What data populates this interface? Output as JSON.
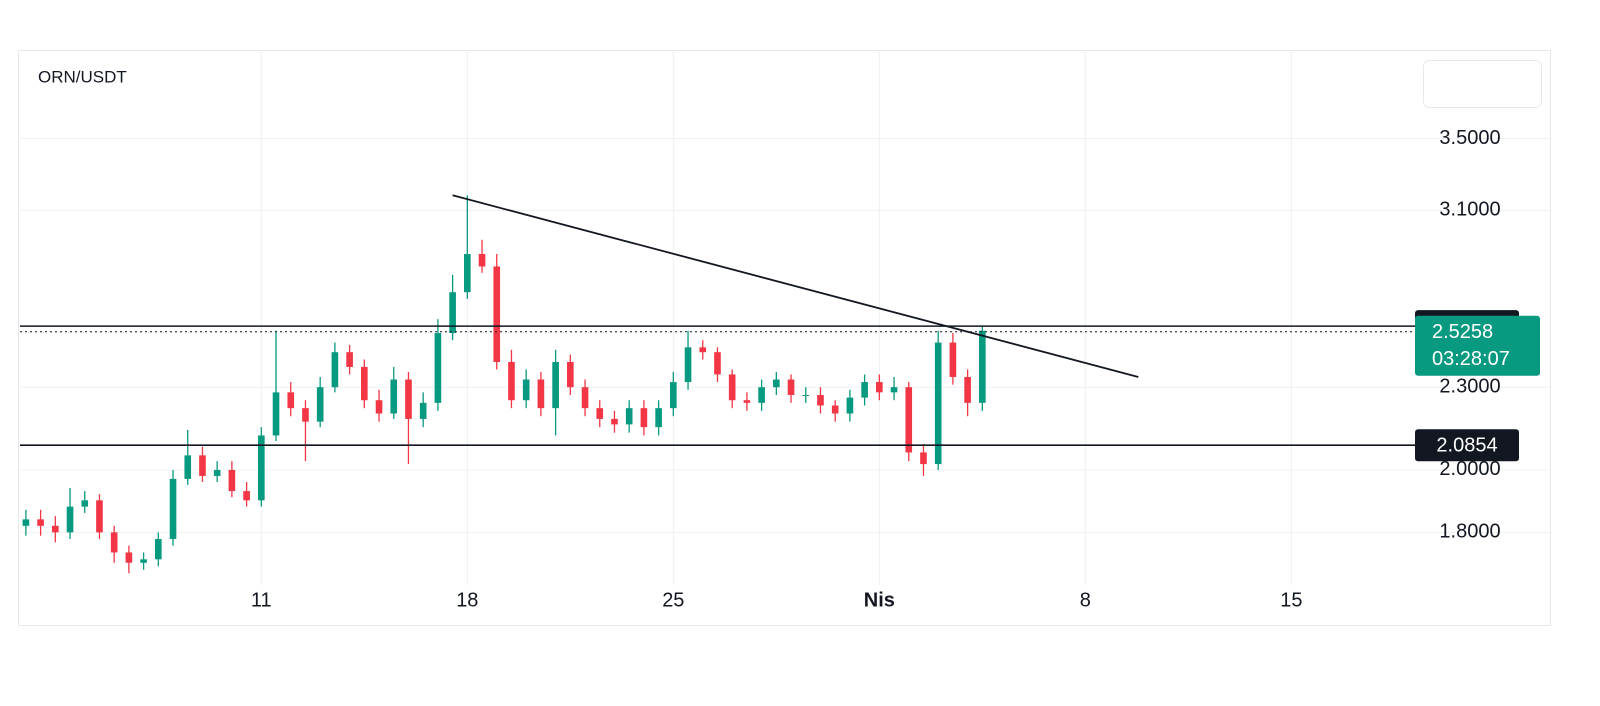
{
  "chart_data": {
    "type": "candlestick",
    "title": "ORN/USDT",
    "x": [
      3,
      3.5,
      4,
      4.5,
      5,
      5.5,
      6,
      6.5,
      7,
      7.5,
      8,
      8.5,
      9,
      9.5,
      10,
      10.5,
      11,
      11.5,
      12,
      12.5,
      13,
      13.5,
      14,
      14.5,
      15,
      15.5,
      16,
      16.5,
      17,
      17.5,
      18,
      18.5,
      19,
      19.5,
      20,
      20.5,
      21,
      21.5,
      22,
      22.5,
      23,
      23.5,
      24,
      24.5,
      25,
      25.5,
      26,
      26.5,
      27,
      27.5,
      28,
      28.5,
      29,
      29.5,
      30,
      30.5,
      31,
      31.5,
      32,
      32.5,
      33,
      33.5,
      34,
      34.5,
      35,
      35.5
    ],
    "open": [
      1.82,
      1.84,
      1.82,
      1.8,
      1.88,
      1.9,
      1.8,
      1.74,
      1.71,
      1.72,
      1.78,
      1.97,
      2.05,
      1.98,
      2.0,
      1.93,
      1.9,
      2.12,
      2.28,
      2.22,
      2.17,
      2.3,
      2.44,
      2.38,
      2.25,
      2.2,
      2.33,
      2.18,
      2.24,
      2.52,
      2.7,
      2.88,
      2.82,
      2.4,
      2.25,
      2.33,
      2.22,
      2.4,
      2.3,
      2.22,
      2.18,
      2.16,
      2.22,
      2.15,
      2.22,
      2.32,
      2.46,
      2.44,
      2.35,
      2.25,
      2.24,
      2.3,
      2.33,
      2.27,
      2.27,
      2.23,
      2.2,
      2.26,
      2.32,
      2.28,
      2.3,
      2.06,
      2.02,
      2.48,
      2.34,
      2.24
    ],
    "high": [
      1.87,
      1.87,
      1.85,
      1.94,
      1.93,
      1.92,
      1.82,
      1.76,
      1.74,
      1.8,
      2.0,
      2.14,
      2.08,
      2.03,
      2.03,
      1.96,
      2.15,
      2.53,
      2.32,
      2.25,
      2.34,
      2.48,
      2.47,
      2.41,
      2.29,
      2.38,
      2.36,
      2.28,
      2.58,
      2.78,
      3.18,
      2.95,
      2.88,
      2.45,
      2.37,
      2.36,
      2.45,
      2.43,
      2.33,
      2.25,
      2.21,
      2.25,
      2.25,
      2.25,
      2.36,
      2.53,
      2.49,
      2.46,
      2.37,
      2.28,
      2.33,
      2.36,
      2.35,
      2.3,
      2.3,
      2.25,
      2.29,
      2.35,
      2.35,
      2.34,
      2.32,
      2.09,
      2.53,
      2.52,
      2.37,
      2.55
    ],
    "low": [
      1.79,
      1.79,
      1.77,
      1.78,
      1.86,
      1.78,
      1.71,
      1.68,
      1.69,
      1.7,
      1.76,
      1.95,
      1.96,
      1.96,
      1.91,
      1.88,
      1.88,
      2.1,
      2.19,
      2.03,
      2.15,
      2.28,
      2.35,
      2.22,
      2.17,
      2.18,
      2.02,
      2.15,
      2.21,
      2.49,
      2.67,
      2.79,
      2.37,
      2.22,
      2.22,
      2.19,
      2.12,
      2.27,
      2.19,
      2.15,
      2.13,
      2.13,
      2.12,
      2.12,
      2.19,
      2.29,
      2.41,
      2.32,
      2.22,
      2.21,
      2.21,
      2.27,
      2.24,
      2.24,
      2.2,
      2.17,
      2.17,
      2.23,
      2.25,
      2.25,
      2.03,
      1.98,
      2.0,
      2.31,
      2.19,
      2.21
    ],
    "close": [
      1.84,
      1.82,
      1.8,
      1.88,
      1.9,
      1.8,
      1.74,
      1.71,
      1.72,
      1.78,
      1.97,
      2.05,
      1.98,
      2.0,
      1.93,
      1.9,
      2.12,
      2.28,
      2.22,
      2.17,
      2.3,
      2.44,
      2.38,
      2.25,
      2.2,
      2.33,
      2.18,
      2.24,
      2.52,
      2.7,
      2.88,
      2.82,
      2.4,
      2.25,
      2.33,
      2.22,
      2.4,
      2.3,
      2.22,
      2.18,
      2.16,
      2.22,
      2.15,
      2.22,
      2.32,
      2.46,
      2.44,
      2.35,
      2.25,
      2.24,
      2.3,
      2.33,
      2.27,
      2.27,
      2.23,
      2.2,
      2.26,
      2.32,
      2.28,
      2.3,
      2.06,
      2.02,
      2.48,
      2.34,
      2.24,
      2.53
    ],
    "up_color": "#089981",
    "down_color": "#f23645",
    "xlim": [
      2.8,
      50.1
    ],
    "xticks": [
      11,
      18,
      25,
      {
        "value": 32,
        "label": "Nis"
      },
      {
        "value": 39,
        "label": "8"
      },
      {
        "value": 46,
        "label": "15"
      }
    ],
    "ylim": [
      1.675,
      4.03
    ],
    "yticks": [
      {
        "value": 3.5,
        "label": "3.5000"
      },
      {
        "value": 3.1,
        "label": "3.1000"
      },
      {
        "value": 2.3,
        "label": "2.3000"
      },
      {
        "value": 2.0,
        "label": "2.0000"
      },
      {
        "value": 1.8,
        "label": "1.8000"
      }
    ],
    "log_scale": true,
    "grid": true,
    "horizontal_lines": [
      {
        "value": 2.5498,
        "color": "#131722"
      },
      {
        "value": 2.0854,
        "color": "#131722"
      }
    ],
    "last_price": {
      "value": 2.5258,
      "countdown": "03:28:07",
      "color": "#089981"
    },
    "trendline": {
      "x": [
        17.5,
        40.8
      ],
      "y": [
        3.18,
        2.34
      ],
      "color": "#131722"
    }
  }
}
